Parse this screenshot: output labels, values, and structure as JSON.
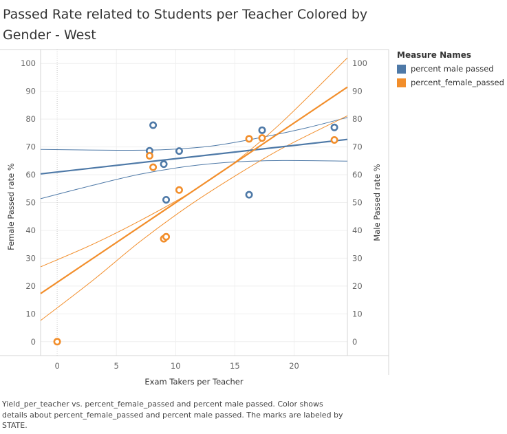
{
  "title": "Passed Rate related to Students per Teacher Colored by Gender - West",
  "legend": {
    "title": "Measure Names",
    "items": [
      {
        "label": "percent male passed",
        "color": "#4e79a7"
      },
      {
        "label": "percent_female_passed",
        "color": "#f28e2b"
      }
    ]
  },
  "caption": "Yield_per_teacher vs. percent_female_passed and percent male passed.  Color shows details about percent_female_passed and percent male passed.  The marks are labeled by STATE.",
  "chart_data": {
    "type": "scatter",
    "title": "Passed Rate related to Students per Teacher Colored by Gender - West",
    "xlabel": "Exam Takers per Teacher",
    "ylabel_left": "Female Passed rate %",
    "ylabel_right": "Male Passed rate %",
    "xlim": [
      -1.4,
      24.5
    ],
    "ylim": [
      -5,
      105
    ],
    "x_ticks": [
      0,
      5,
      10,
      15,
      20
    ],
    "y_ticks": [
      0,
      10,
      20,
      30,
      40,
      50,
      60,
      70,
      80,
      90,
      100
    ],
    "x_zero_line": true,
    "series": [
      {
        "name": "percent male passed",
        "color": "#4e79a7",
        "points": [
          {
            "x": 8.1,
            "y": 77.8
          },
          {
            "x": 7.8,
            "y": 68.6
          },
          {
            "x": 10.3,
            "y": 68.5
          },
          {
            "x": 9.0,
            "y": 63.8
          },
          {
            "x": 9.2,
            "y": 51.0
          },
          {
            "x": 16.2,
            "y": 52.8
          },
          {
            "x": 17.3,
            "y": 76.0
          },
          {
            "x": 23.4,
            "y": 77.0
          }
        ],
        "trend": {
          "x0": -1.4,
          "y0": 60.3,
          "x1": 24.5,
          "y1": 72.7
        },
        "band_upper": [
          [
            -1.4,
            69.1
          ],
          [
            5,
            68.8
          ],
          [
            9,
            69.0
          ],
          [
            13,
            70.3
          ],
          [
            17,
            73.2
          ],
          [
            21,
            76.8
          ],
          [
            24.5,
            80.6
          ]
        ],
        "band_lower": [
          [
            -1.4,
            51.4
          ],
          [
            3,
            56.2
          ],
          [
            7,
            60.2
          ],
          [
            11,
            63.0
          ],
          [
            15,
            64.6
          ],
          [
            19,
            65.1
          ],
          [
            24.5,
            64.9
          ]
        ]
      },
      {
        "name": "percent_female_passed",
        "color": "#f28e2b",
        "points": [
          {
            "x": 0.0,
            "y": 0.0
          },
          {
            "x": 7.8,
            "y": 66.8
          },
          {
            "x": 8.1,
            "y": 62.7
          },
          {
            "x": 10.3,
            "y": 54.5
          },
          {
            "x": 9.0,
            "y": 37.0
          },
          {
            "x": 9.2,
            "y": 37.7
          },
          {
            "x": 16.2,
            "y": 72.9
          },
          {
            "x": 17.3,
            "y": 73.2
          },
          {
            "x": 23.4,
            "y": 72.5
          }
        ],
        "trend": {
          "x0": -1.4,
          "y0": 17.3,
          "x1": 24.5,
          "y1": 91.5
        },
        "band_upper": [
          [
            -1.4,
            26.9
          ],
          [
            3,
            35.0
          ],
          [
            7,
            43.5
          ],
          [
            11,
            53.0
          ],
          [
            15,
            64.5
          ],
          [
            19,
            79.0
          ],
          [
            24.5,
            102.0
          ]
        ],
        "band_lower": [
          [
            -1.4,
            7.6
          ],
          [
            3,
            22.0
          ],
          [
            7,
            36.0
          ],
          [
            11,
            48.5
          ],
          [
            15,
            59.5
          ],
          [
            19,
            69.5
          ],
          [
            24.5,
            81.2
          ]
        ]
      }
    ]
  }
}
